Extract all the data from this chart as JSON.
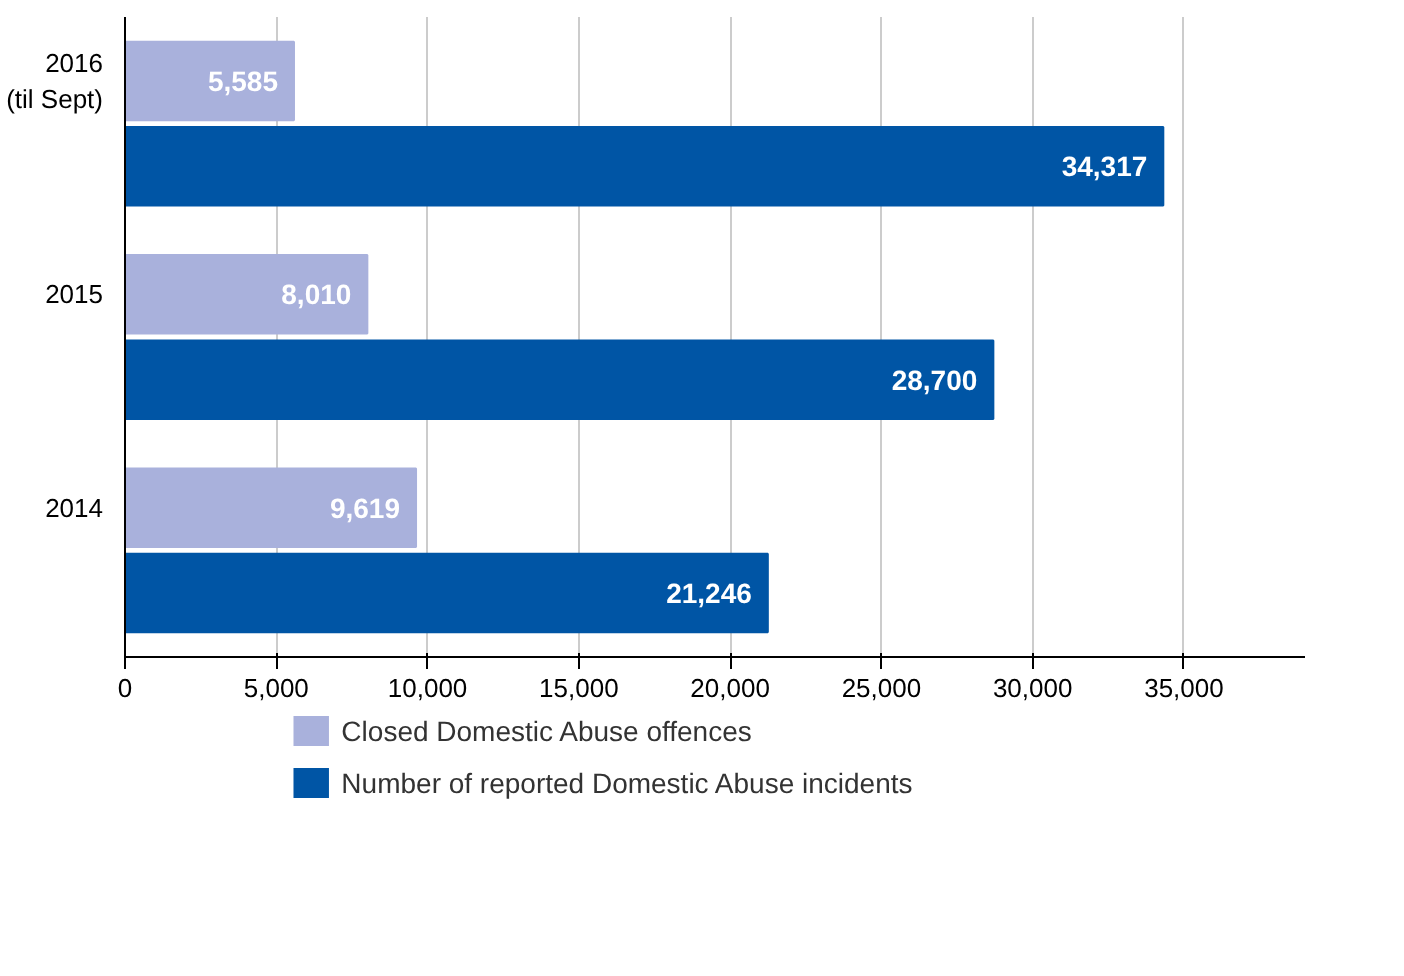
{
  "chart_data": {
    "type": "bar",
    "orientation": "horizontal",
    "categories": [
      "2016\n(til Sept)",
      "2015",
      "2014"
    ],
    "series": [
      {
        "name": "Closed Domestic Abuse offences",
        "color": "#a9b1dc",
        "values": [
          5585,
          8010,
          9619
        ],
        "value_labels": [
          "5,585",
          "8,010",
          "9,619"
        ]
      },
      {
        "name": "Number of reported Domestic Abuse incidents",
        "color": "#0055a5",
        "values": [
          34317,
          28700,
          21246
        ],
        "value_labels": [
          "34,317",
          "28,700",
          "21,246"
        ]
      }
    ],
    "xlim": [
      0,
      39000
    ],
    "xticks": [
      {
        "value": 0,
        "label": "0"
      },
      {
        "value": 5000,
        "label": "5,000"
      },
      {
        "value": 10000,
        "label": "10,000"
      },
      {
        "value": 15000,
        "label": "15,000"
      },
      {
        "value": 20000,
        "label": "20,000"
      },
      {
        "value": 25000,
        "label": "25,000"
      },
      {
        "value": 30000,
        "label": "30,000"
      },
      {
        "value": 35000,
        "label": "35,000"
      }
    ],
    "grid": "x",
    "legend": "bottom"
  }
}
